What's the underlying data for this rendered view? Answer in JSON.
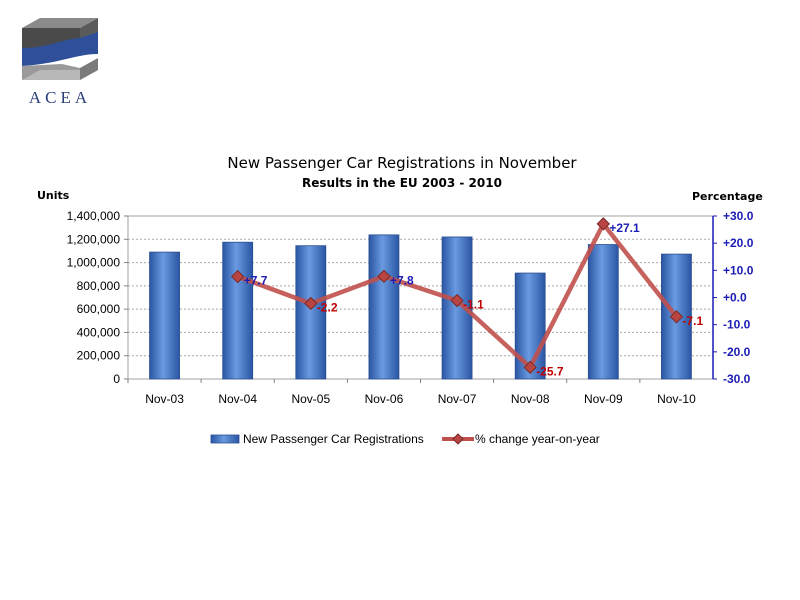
{
  "logo": {
    "text": "ACEA"
  },
  "chart_data": {
    "type": "bar+line",
    "title": "New Passenger Car Registrations in November",
    "subtitle": "Results in the EU 2003 - 2010",
    "ylabel_left": "Units",
    "ylabel_right": "Percentage",
    "categories": [
      "Nov-03",
      "Nov-04",
      "Nov-05",
      "Nov-06",
      "Nov-07",
      "Nov-08",
      "Nov-09",
      "Nov-10"
    ],
    "ylim_left": [
      0,
      1400000
    ],
    "ylim_right": [
      -30,
      30
    ],
    "yticks_left": [
      "0",
      "200,000",
      "400,000",
      "600,000",
      "800,000",
      "1,000,000",
      "1,200,000",
      "1,400,000"
    ],
    "yticks_right": [
      "-30.0",
      "-20.0",
      "-10.0",
      "+0.0",
      "+10.0",
      "+20.0",
      "+30.0"
    ],
    "grid": true,
    "legend_position": "bottom",
    "series": [
      {
        "name": "New Passenger Car Registrations",
        "type": "bar",
        "axis": "left",
        "color": "#3a6ec0",
        "values": [
          1090000,
          1175000,
          1145000,
          1238000,
          1220000,
          910000,
          1155000,
          1073000
        ]
      },
      {
        "name": "% change year-on-year",
        "type": "line",
        "axis": "right",
        "color": "#c0504d",
        "values": [
          null,
          7.7,
          -2.2,
          7.8,
          -1.1,
          -25.7,
          27.1,
          -7.1
        ],
        "labels": [
          "",
          "+7.7",
          "-2.2",
          "+7.8",
          "-1.1",
          "-25.7",
          "+27.1",
          "-7.1"
        ]
      }
    ],
    "label_colors": {
      "positive": "#1b1bb5",
      "negative": "#c00000"
    }
  }
}
